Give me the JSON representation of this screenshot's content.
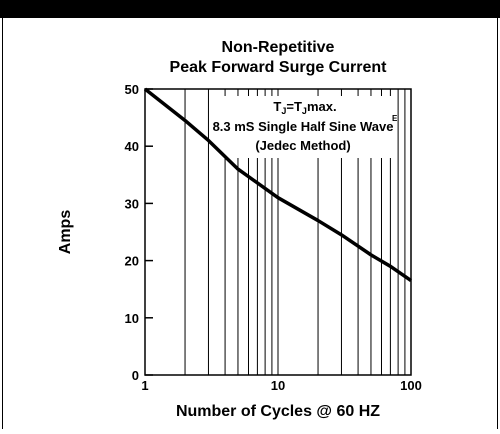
{
  "chart_data": {
    "type": "line",
    "title": [
      "Non-Repetitive",
      "Peak Forward Surge Current"
    ],
    "annotation": {
      "tj_parts": [
        "T",
        "J",
        "=T",
        "J",
        "max."
      ],
      "lines": [
        "8.3 mS Single Half Sine Wave",
        "(Jedec Method)"
      ],
      "superscript": "E"
    },
    "xlabel": "Number of Cycles @ 60 HZ",
    "ylabel": "Amps",
    "xscale": "log",
    "xlim": [
      1,
      100
    ],
    "xticks": [
      1,
      10,
      100
    ],
    "xminor": [
      2,
      3,
      4,
      5,
      6,
      7,
      8,
      9,
      20,
      30,
      40,
      50,
      60,
      70,
      80,
      90
    ],
    "ylim": [
      0,
      50
    ],
    "yticks": [
      0,
      10,
      20,
      30,
      40,
      50
    ],
    "series": [
      {
        "color": "#000000",
        "x": [
          1,
          2,
          3,
          5,
          10,
          20,
          30,
          50,
          70,
          100
        ],
        "values": [
          50,
          44.5,
          41,
          36,
          31,
          27,
          24.5,
          21,
          19,
          16.5
        ]
      }
    ]
  }
}
